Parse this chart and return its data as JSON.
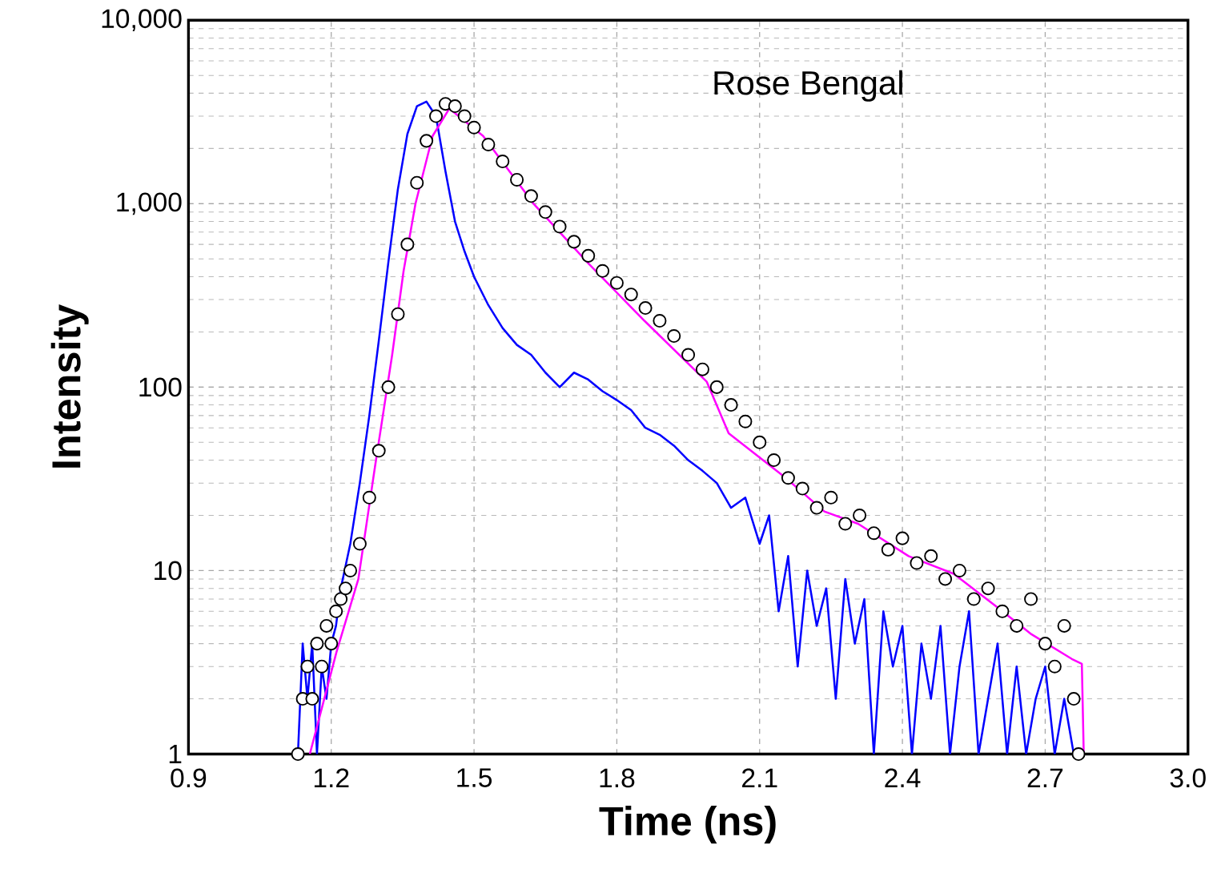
{
  "chart_data": {
    "type": "scatter",
    "xlabel": "Time (ns)",
    "ylabel": "Intensity",
    "annotations": [
      "Rose Bengal"
    ],
    "xlim": [
      0.9,
      3.0
    ],
    "ylim": [
      1,
      10000
    ],
    "log": "y",
    "grid": true,
    "xticks": [
      0.9,
      1.2,
      1.5,
      1.8,
      2.1,
      2.4,
      2.7,
      {
        "value": 3.0,
        "label": "3.0"
      }
    ],
    "yticks": [
      1,
      10,
      100,
      {
        "value": 1000,
        "label": "1,000"
      },
      {
        "value": 10000,
        "label": "10,000"
      }
    ],
    "series": [
      {
        "type": "line",
        "color": "#0000ff",
        "marker": "none",
        "x": [
          1.13,
          1.14,
          1.15,
          1.16,
          1.17,
          1.18,
          1.19,
          1.2,
          1.21,
          1.22,
          1.24,
          1.26,
          1.28,
          1.3,
          1.32,
          1.34,
          1.36,
          1.38,
          1.4,
          1.42,
          1.44,
          1.46,
          1.48,
          1.5,
          1.53,
          1.56,
          1.59,
          1.62,
          1.65,
          1.68,
          1.71,
          1.74,
          1.77,
          1.8,
          1.83,
          1.86,
          1.89,
          1.92,
          1.95,
          1.98,
          2.01,
          2.04,
          2.07,
          2.1,
          2.12,
          2.14,
          2.16,
          2.18,
          2.2,
          2.22,
          2.24,
          2.26,
          2.28,
          2.3,
          2.32,
          2.34,
          2.36,
          2.38,
          2.4,
          2.42,
          2.44,
          2.46,
          2.48,
          2.5,
          2.52,
          2.54,
          2.56,
          2.58,
          2.6,
          2.62,
          2.64,
          2.66,
          2.68,
          2.7,
          2.72,
          2.74,
          2.76,
          2.78
        ],
        "values": [
          1,
          4,
          2,
          4,
          1,
          3,
          2,
          4,
          5,
          8,
          14,
          30,
          70,
          180,
          480,
          1200,
          2400,
          3400,
          3600,
          3000,
          1500,
          800,
          550,
          400,
          280,
          210,
          170,
          150,
          120,
          100,
          120,
          110,
          95,
          85,
          75,
          60,
          55,
          48,
          40,
          35,
          30,
          22,
          25,
          14,
          20,
          6,
          12,
          3,
          10,
          5,
          8,
          2,
          9,
          4,
          7,
          1,
          6,
          3,
          5,
          1,
          4,
          2,
          5,
          1,
          3,
          6,
          1,
          2,
          4,
          1,
          3,
          1,
          2,
          3,
          1,
          2,
          1,
          1
        ]
      },
      {
        "color": "#000000",
        "marker": "circle",
        "x": [
          1.13,
          1.14,
          1.15,
          1.16,
          1.17,
          1.18,
          1.19,
          1.2,
          1.21,
          1.22,
          1.23,
          1.24,
          1.26,
          1.28,
          1.3,
          1.32,
          1.34,
          1.36,
          1.38,
          1.4,
          1.42,
          1.44,
          1.46,
          1.48,
          1.5,
          1.53,
          1.56,
          1.59,
          1.62,
          1.65,
          1.68,
          1.71,
          1.74,
          1.77,
          1.8,
          1.83,
          1.86,
          1.89,
          1.92,
          1.95,
          1.98,
          2.01,
          2.04,
          2.07,
          2.1,
          2.13,
          2.16,
          2.19,
          2.22,
          2.25,
          2.28,
          2.31,
          2.34,
          2.37,
          2.4,
          2.43,
          2.46,
          2.49,
          2.52,
          2.55,
          2.58,
          2.61,
          2.64,
          2.67,
          2.7,
          2.72,
          2.74,
          2.76,
          2.77
        ],
        "values": [
          1,
          2,
          3,
          2,
          4,
          3,
          5,
          4,
          6,
          7,
          8,
          10,
          14,
          25,
          45,
          100,
          250,
          600,
          1300,
          2200,
          3000,
          3500,
          3400,
          3000,
          2600,
          2100,
          1700,
          1350,
          1100,
          900,
          750,
          620,
          520,
          430,
          370,
          320,
          270,
          230,
          190,
          150,
          125,
          100,
          80,
          65,
          50,
          40,
          32,
          28,
          22,
          25,
          18,
          20,
          16,
          13,
          15,
          11,
          12,
          9,
          10,
          7,
          8,
          6,
          5,
          7,
          4,
          3,
          5,
          2,
          1
        ]
      },
      {
        "type": "line",
        "color": "#ff00ff",
        "marker": "none",
        "x": [
          1.155,
          1.211,
          1.257,
          1.292,
          1.328,
          1.352,
          1.377,
          1.413,
          1.448,
          1.519,
          1.625,
          1.741,
          1.858,
          1.989,
          2.035,
          2.155,
          2.236,
          2.307,
          2.413,
          2.508,
          2.6,
          2.671,
          2.756,
          2.777,
          2.781
        ],
        "values": [
          1,
          3.6,
          9,
          37,
          150,
          430,
          1000,
          2340,
          3300,
          2340,
          1000,
          470,
          230,
          107,
          56,
          32,
          21,
          18,
          12,
          9.6,
          6.3,
          4.5,
          3.3,
          3.1,
          1
        ]
      }
    ]
  }
}
